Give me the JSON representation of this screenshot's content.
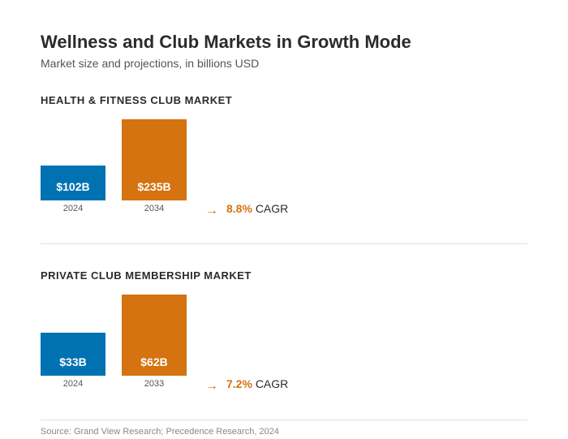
{
  "header": {
    "title": "Wellness and Club Markets in Growth Mode",
    "subtitle": "Market size and projections, in billions USD"
  },
  "colors": {
    "current": "#0072b2",
    "projected": "#d4730f"
  },
  "chart_data": [
    {
      "type": "bar",
      "title": "HEALTH & FITNESS CLUB MARKET",
      "categories": [
        "2024",
        "2034"
      ],
      "values": [
        102,
        235
      ],
      "labels": [
        "$102B",
        "$235B"
      ],
      "cagr_value": "8.8%",
      "cagr_suffix": "CAGR",
      "arrow": "→"
    },
    {
      "type": "bar",
      "title": "PRIVATE CLUB MEMBERSHIP MARKET",
      "categories": [
        "2024",
        "2033"
      ],
      "values": [
        33,
        62
      ],
      "labels": [
        "$33B",
        "$62B"
      ],
      "cagr_value": "7.2%",
      "cagr_suffix": "CAGR",
      "arrow": "→"
    }
  ],
  "footer": {
    "source": "Source: Grand View Research; Precedence Research, 2024"
  }
}
